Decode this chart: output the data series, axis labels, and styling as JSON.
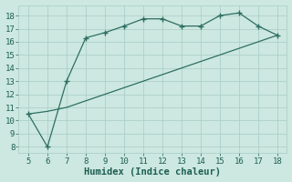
{
  "line1_x": [
    5,
    6,
    7,
    8,
    9,
    10,
    11,
    12,
    13,
    14,
    15,
    16,
    17,
    18
  ],
  "line1_y": [
    10.5,
    8.0,
    13.0,
    16.3,
    16.7,
    17.2,
    17.75,
    17.75,
    17.2,
    17.2,
    18.0,
    18.2,
    17.2,
    16.5
  ],
  "line2_x": [
    5,
    6,
    7,
    8,
    9,
    10,
    11,
    12,
    13,
    14,
    15,
    16,
    17,
    18
  ],
  "line2_y": [
    10.5,
    10.7,
    11.0,
    11.5,
    12.0,
    12.5,
    13.0,
    13.5,
    14.0,
    14.5,
    15.0,
    15.5,
    16.0,
    16.5
  ],
  "color": "#2e6e62",
  "xlabel": "Humidex (Indice chaleur)",
  "xlim": [
    4.5,
    18.5
  ],
  "ylim": [
    7.5,
    18.8
  ],
  "xticks": [
    5,
    6,
    7,
    8,
    9,
    10,
    11,
    12,
    13,
    14,
    15,
    16,
    17,
    18
  ],
  "yticks": [
    8,
    9,
    10,
    11,
    12,
    13,
    14,
    15,
    16,
    17,
    18
  ],
  "bg_color": "#cce8e0",
  "grid_color": "#a8ccc4",
  "font_color": "#1e5e52",
  "font_size": 6.5,
  "xlabel_fontsize": 7.5
}
